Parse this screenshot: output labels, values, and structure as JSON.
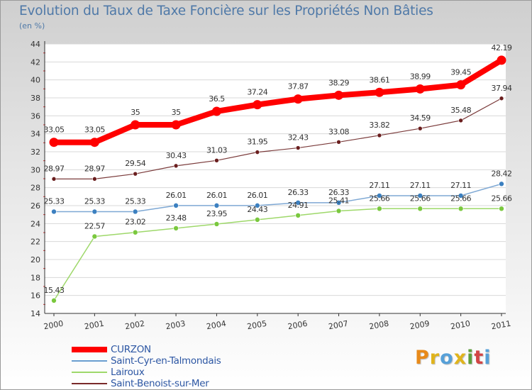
{
  "title": "Evolution du Taux de Taxe Foncière sur les Propriétés Non Bâties",
  "unit_label": "(en %)",
  "logo_text": "Proxiti",
  "logo_colors": [
    "#e88a1a",
    "#e0b41c",
    "#56a0d8",
    "#e0b41c",
    "#5c9e3c",
    "#d24444",
    "#56a0d8"
  ],
  "chart_data": {
    "type": "line",
    "title": "Evolution du Taux de Taxe Foncière sur les Propriétés Non Bâties",
    "ylabel": "(en %)",
    "xlabel": "",
    "x": [
      "2000",
      "2001",
      "2002",
      "2003",
      "2004",
      "2005",
      "2006",
      "2007",
      "2008",
      "2009",
      "2010",
      "2011"
    ],
    "ylim": [
      14,
      44
    ],
    "yticks": [
      14,
      16,
      18,
      20,
      22,
      24,
      26,
      28,
      30,
      32,
      34,
      36,
      38,
      40,
      42,
      44
    ],
    "grid": "horizontal",
    "series": [
      {
        "name": "CURZON",
        "color": "#ff0000",
        "values": [
          33.05,
          33.05,
          35,
          35,
          36.5,
          37.24,
          37.87,
          38.29,
          38.61,
          38.99,
          39.45,
          42.19
        ],
        "labels": [
          "33.05",
          "33.05",
          "35",
          "35",
          "36.5",
          "37.24",
          "37.87",
          "38.29",
          "38.61",
          "38.99",
          "39.45",
          "42.19"
        ]
      },
      {
        "name": "Saint-Cyr-en-Talmondais",
        "color": "#6a9ed0",
        "values": [
          25.33,
          25.33,
          25.33,
          26.01,
          26.01,
          26.01,
          26.33,
          26.33,
          27.11,
          27.11,
          27.11,
          28.42
        ],
        "labels": [
          "25.33",
          "25.33",
          "25.33",
          "26.01",
          "26.01",
          "26.01",
          "26.33",
          "26.33",
          "27.11",
          "27.11",
          "27.11",
          "28.42"
        ]
      },
      {
        "name": "Lairoux",
        "color": "#9ed86a",
        "values": [
          15.43,
          22.57,
          23.02,
          23.48,
          23.95,
          24.43,
          24.91,
          25.41,
          25.66,
          25.66,
          25.66,
          25.66
        ],
        "labels": [
          "15.43",
          "22.57",
          "23.02",
          "23.48",
          "23.95",
          "24.43",
          "24.91",
          "25.41",
          "25.66",
          "25.66",
          "25.66",
          "25.66"
        ]
      },
      {
        "name": "Saint-Benoist-sur-Mer",
        "color": "#7a2a2a",
        "values": [
          28.97,
          28.97,
          29.54,
          30.43,
          31.03,
          31.95,
          32.43,
          33.08,
          33.82,
          34.59,
          35.48,
          37.94
        ],
        "labels": [
          "28.97",
          "28.97",
          "29.54",
          "30.43",
          "31.03",
          "31.95",
          "32.43",
          "33.08",
          "33.82",
          "34.59",
          "35.48",
          "37.94"
        ]
      }
    ]
  }
}
